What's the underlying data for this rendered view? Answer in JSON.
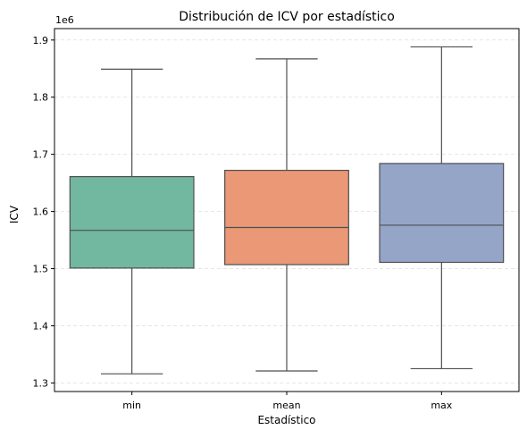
{
  "chart_data": {
    "type": "box",
    "title": "Distribución de ICV por estadístico",
    "xlabel": "Estadístico",
    "ylabel": "ICV",
    "y_offset_label": "1e6",
    "y_scale": 1000000,
    "ylim": [
      1285000,
      1920000
    ],
    "yticks": [
      1300000,
      1400000,
      1500000,
      1600000,
      1700000,
      1800000,
      1900000
    ],
    "ytick_labels": [
      "1.3",
      "1.4",
      "1.5",
      "1.6",
      "1.7",
      "1.8",
      "1.9"
    ],
    "grid": "y-dashed",
    "categories": [
      "min",
      "mean",
      "max"
    ],
    "boxes": [
      {
        "category": "min",
        "whisker_low": 1316000,
        "q1": 1501000,
        "median": 1567000,
        "q3": 1661000,
        "whisker_high": 1849000,
        "color": "#72b7a0"
      },
      {
        "category": "mean",
        "whisker_low": 1321000,
        "q1": 1507000,
        "median": 1572000,
        "q3": 1672000,
        "whisker_high": 1867000,
        "color": "#ea9876"
      },
      {
        "category": "max",
        "whisker_low": 1325000,
        "q1": 1511000,
        "median": 1576000,
        "q3": 1684000,
        "whisker_high": 1888000,
        "color": "#94a5c8"
      }
    ]
  }
}
